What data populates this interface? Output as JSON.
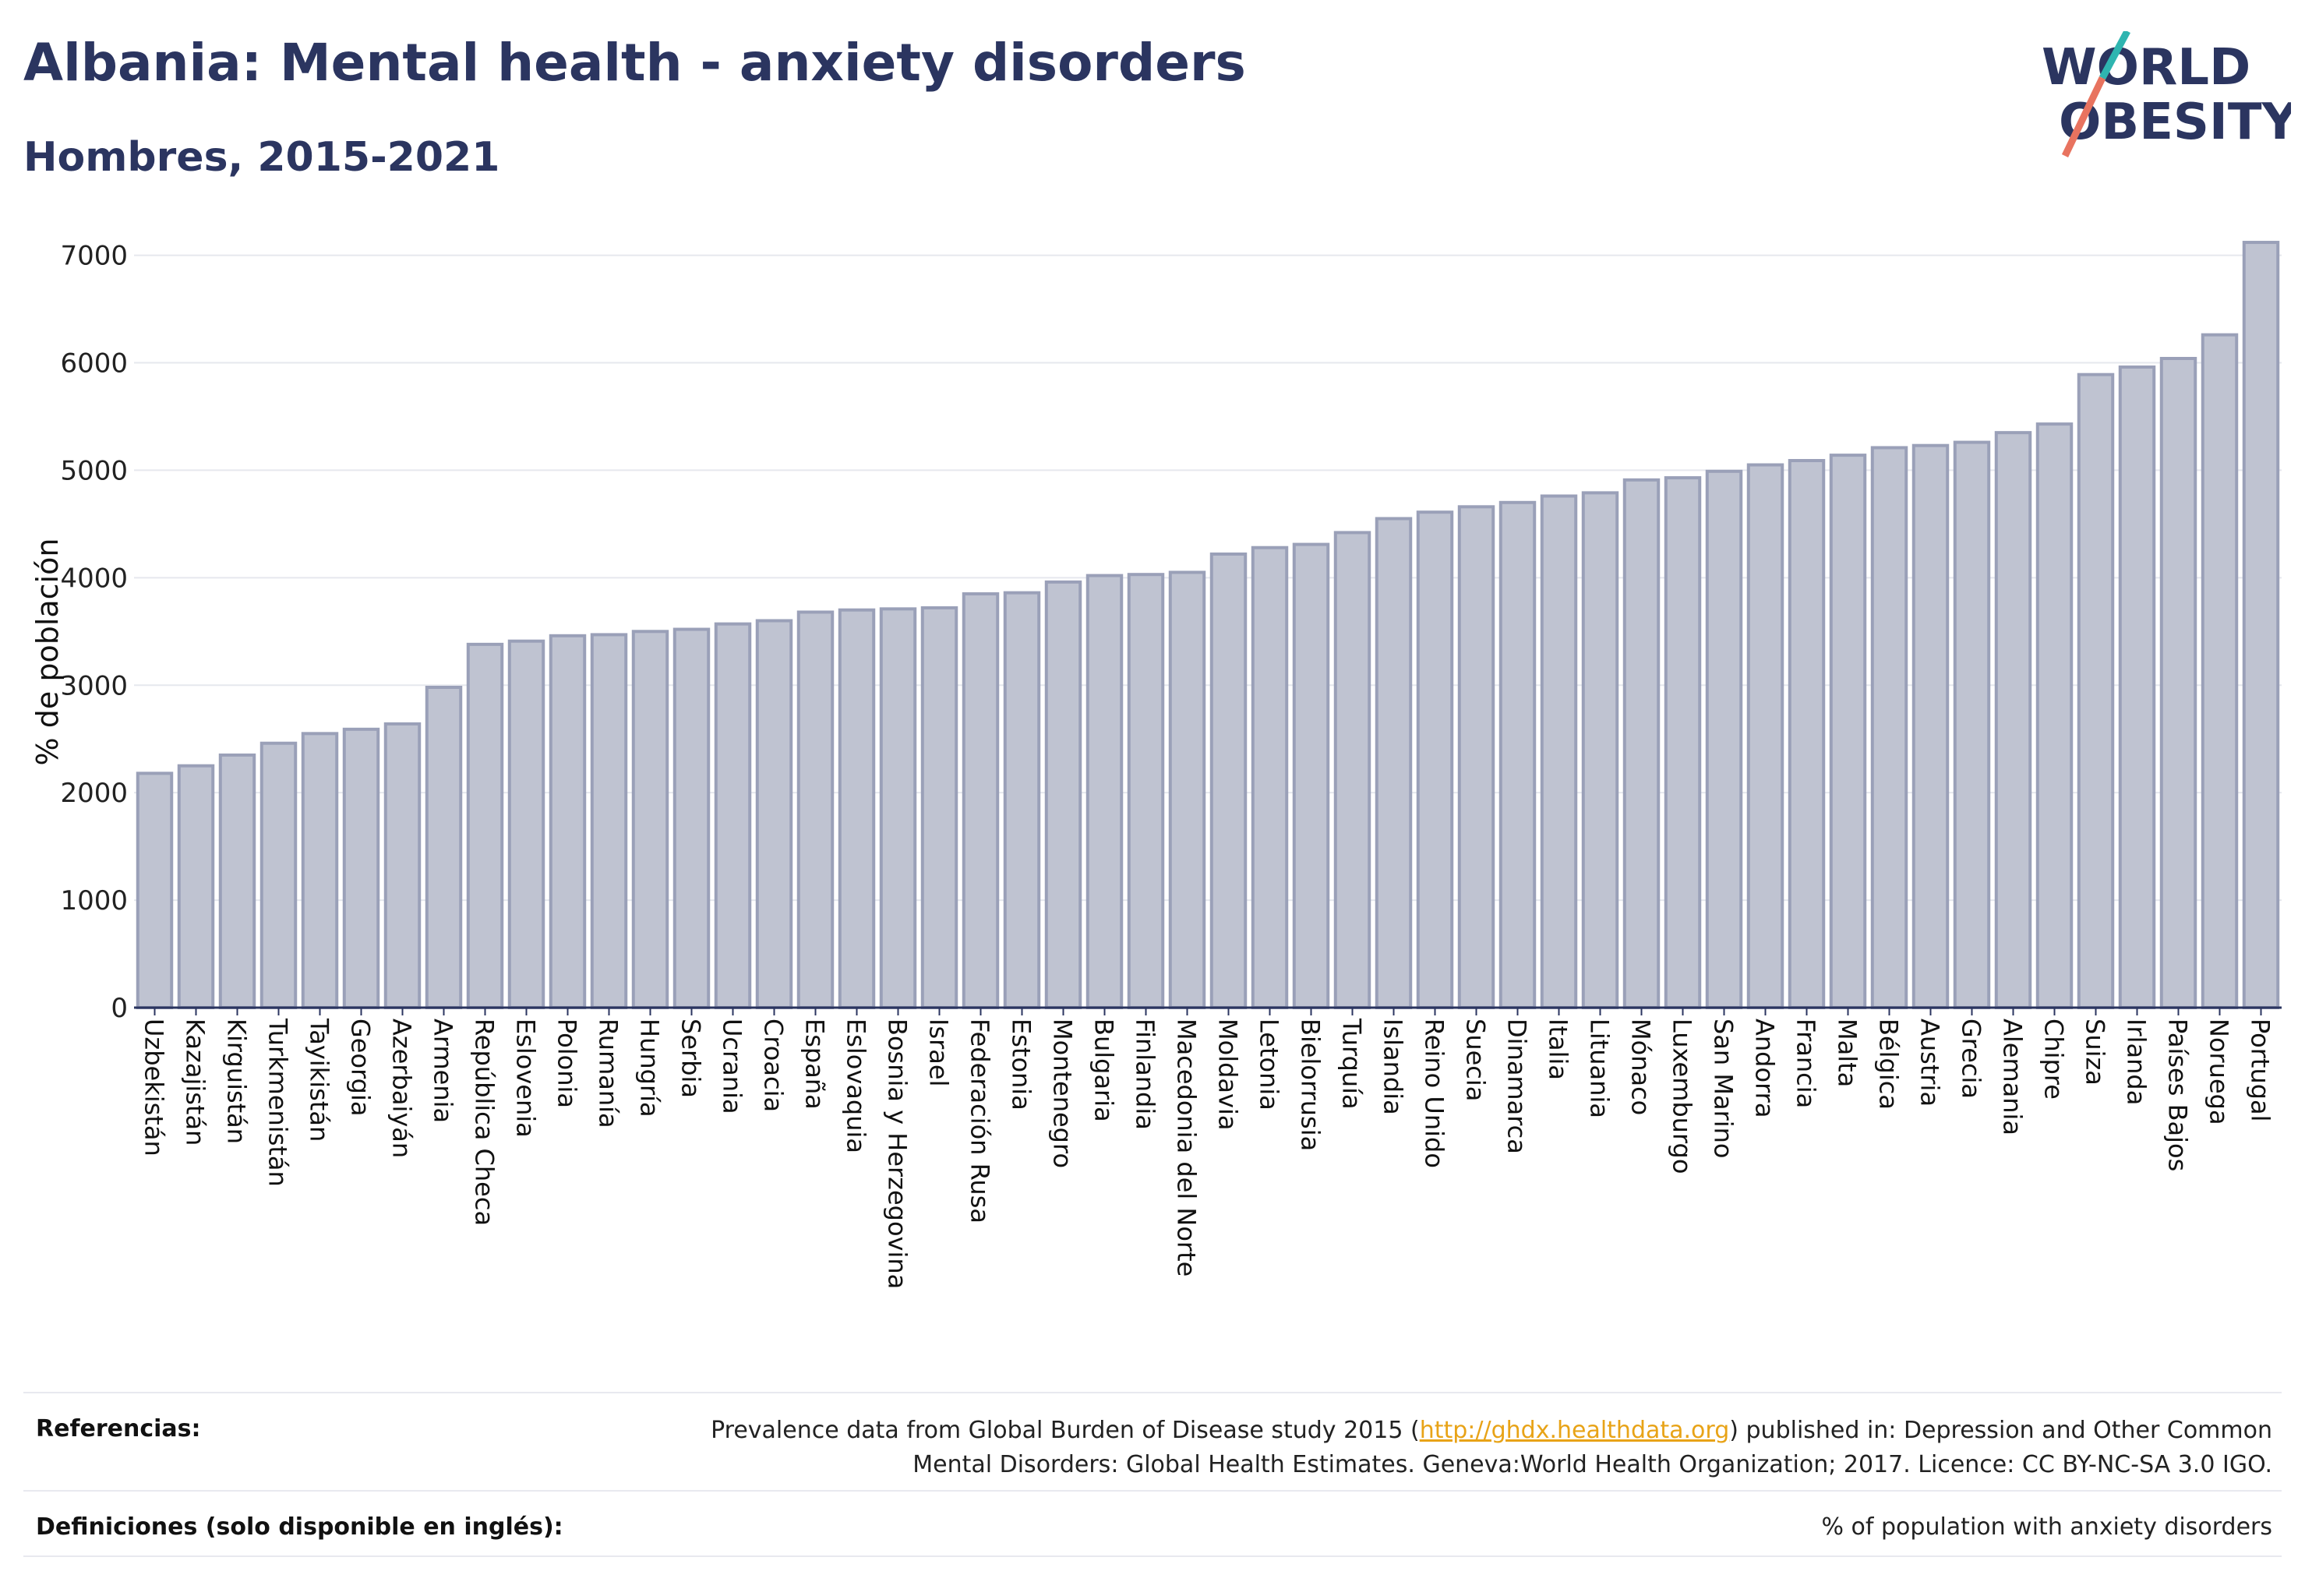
{
  "header": {
    "title": "Albania: Mental health - anxiety disorders",
    "subtitle": "Hombres, 2015-2021"
  },
  "logo": {
    "line1": "WORLD",
    "line2": "OBESITY"
  },
  "colors": {
    "title": "#2b3560",
    "bar_fill": "#bfc3d1",
    "bar_stroke": "#9aa0b8",
    "axis": "#2b3560",
    "grid": "#e6e8ee",
    "link": "#e8a317",
    "logo_slash_teal": "#2fb5b0",
    "logo_slash_coral": "#e8735f"
  },
  "chart_data": {
    "type": "bar",
    "title": "Albania: Mental health - anxiety disorders",
    "subtitle": "Hombres, 2015-2021",
    "xlabel": "",
    "ylabel": "% de población",
    "ylim": [
      0,
      7200
    ],
    "yticks": [
      0,
      1000,
      2000,
      3000,
      4000,
      5000,
      6000,
      7000
    ],
    "grid": true,
    "categories": [
      "Uzbekistán",
      "Kazajistán",
      "Kirguistán",
      "Turkmenistán",
      "Tayikistán",
      "Georgia",
      "Azerbaiyán",
      "Armenia",
      "República Checa",
      "Eslovenia",
      "Polonia",
      "Rumanía",
      "Hungría",
      "Serbia",
      "Ucrania",
      "Croacia",
      "España",
      "Eslovaquia",
      "Bosnia y Herzegovina",
      "Israel",
      "Federación Rusa",
      "Estonia",
      "Montenegro",
      "Bulgaria",
      "Finlandia",
      "Macedonia del Norte",
      "Moldavia",
      "Letonia",
      "Bielorrusia",
      "Turquía",
      "Islandia",
      "Reino Unido",
      "Suecia",
      "Dinamarca",
      "Italia",
      "Lituania",
      "Mónaco",
      "Luxemburgo",
      "San Marino",
      "Andorra",
      "Francia",
      "Malta",
      "Bélgica",
      "Austria",
      "Grecia",
      "Alemania",
      "Chipre",
      "Suiza",
      "Irlanda",
      "Países Bajos",
      "Noruega",
      "Portugal"
    ],
    "values": [
      2180,
      2250,
      2350,
      2460,
      2550,
      2590,
      2640,
      2980,
      3380,
      3410,
      3460,
      3470,
      3500,
      3520,
      3570,
      3600,
      3680,
      3700,
      3710,
      3720,
      3850,
      3860,
      3960,
      4020,
      4030,
      4050,
      4220,
      4280,
      4310,
      4420,
      4550,
      4610,
      4660,
      4700,
      4760,
      4790,
      4910,
      4930,
      4990,
      5050,
      5090,
      5140,
      5210,
      5230,
      5260,
      5350,
      5430,
      5890,
      5960,
      6040,
      6260,
      7120
    ]
  },
  "footer": {
    "references_label": "Referencias:",
    "references_pre": "Prevalence data from Global Burden of Disease study 2015 (",
    "references_link": "http://ghdx.healthdata.org",
    "references_post": ") published in: Depression and Other Common Mental Disorders: Global Health Estimates. Geneva:World Health Organization; 2017. Licence: CC BY-NC-SA 3.0 IGO.",
    "definitions_label": "Definiciones (solo disponible en inglés):",
    "definitions_text": "% of population with anxiety disorders"
  }
}
